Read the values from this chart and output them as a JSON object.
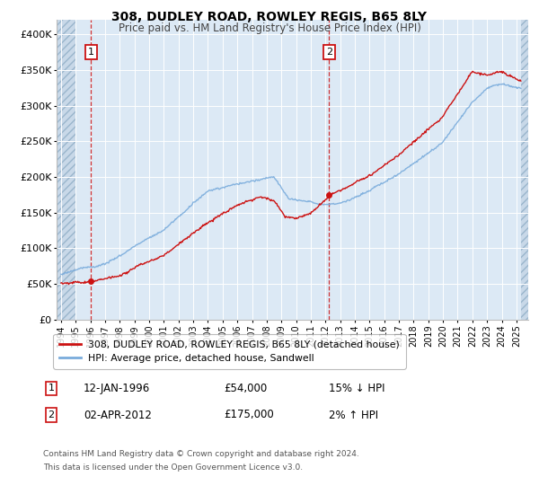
{
  "title": "308, DUDLEY ROAD, ROWLEY REGIS, B65 8LY",
  "subtitle": "Price paid vs. HM Land Registry's House Price Index (HPI)",
  "ylim": [
    0,
    420000
  ],
  "yticks": [
    0,
    50000,
    100000,
    150000,
    200000,
    250000,
    300000,
    350000,
    400000
  ],
  "ytick_labels": [
    "£0",
    "£50K",
    "£100K",
    "£150K",
    "£200K",
    "£250K",
    "£300K",
    "£350K",
    "£400K"
  ],
  "sale1_date": 1996.04,
  "sale1_price": 54000,
  "sale2_date": 2012.25,
  "sale2_price": 175000,
  "hpi_color": "#7aacdc",
  "price_color": "#cc1111",
  "hpi_legend": "HPI: Average price, detached house, Sandwell",
  "price_legend": "308, DUDLEY ROAD, ROWLEY REGIS, B65 8LY (detached house)",
  "footnote1": "Contains HM Land Registry data © Crown copyright and database right 2024.",
  "footnote2": "This data is licensed under the Open Government Licence v3.0.",
  "annotation1_num": "1",
  "annotation1_date": "12-JAN-1996",
  "annotation1_price": "£54,000",
  "annotation1_hpi": "15% ↓ HPI",
  "annotation2_num": "2",
  "annotation2_date": "02-APR-2012",
  "annotation2_price": "£175,000",
  "annotation2_hpi": "2% ↑ HPI",
  "bg_main": "#dce9f5",
  "bg_hatch": "#c8d8e8",
  "grid_color": "#ffffff",
  "xlim_start": 1993.7,
  "xlim_end": 2025.8,
  "hatch_left_end": 1995.0,
  "hatch_right_start": 2025.3
}
